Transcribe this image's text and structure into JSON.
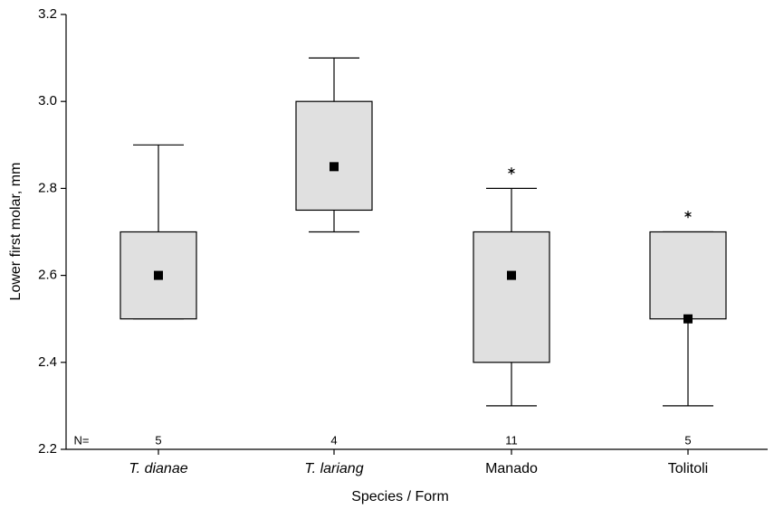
{
  "chart_data": {
    "type": "box",
    "x_label": "Species / Form",
    "y_label": "Lower first molar, mm",
    "categories": [
      "T. dianae",
      "T. lariang",
      "Manado",
      "Tolitoli"
    ],
    "category_style": [
      "italic",
      "italic",
      "normal",
      "normal"
    ],
    "series": [
      {
        "name": "Lower first molar",
        "color": "#e0e0e0",
        "whisker_low": [
          2.5,
          2.7,
          2.3,
          2.3
        ],
        "q1": [
          2.5,
          2.75,
          2.4,
          2.5
        ],
        "median": [
          2.6,
          2.85,
          2.6,
          2.5
        ],
        "q3": [
          2.7,
          3.0,
          2.7,
          2.7
        ],
        "whisker_high": [
          2.9,
          3.1,
          2.8,
          2.7
        ],
        "outliers": [
          [],
          [],
          [
            2.84
          ],
          [
            2.74
          ]
        ]
      }
    ],
    "n_label": "N=",
    "n": [
      5,
      4,
      11,
      5
    ],
    "ylim": [
      2.2,
      3.2
    ],
    "yticks": [
      2.2,
      2.4,
      2.6,
      2.8,
      {
        "value": 3,
        "label": "3.0"
      },
      3.2
    ]
  }
}
